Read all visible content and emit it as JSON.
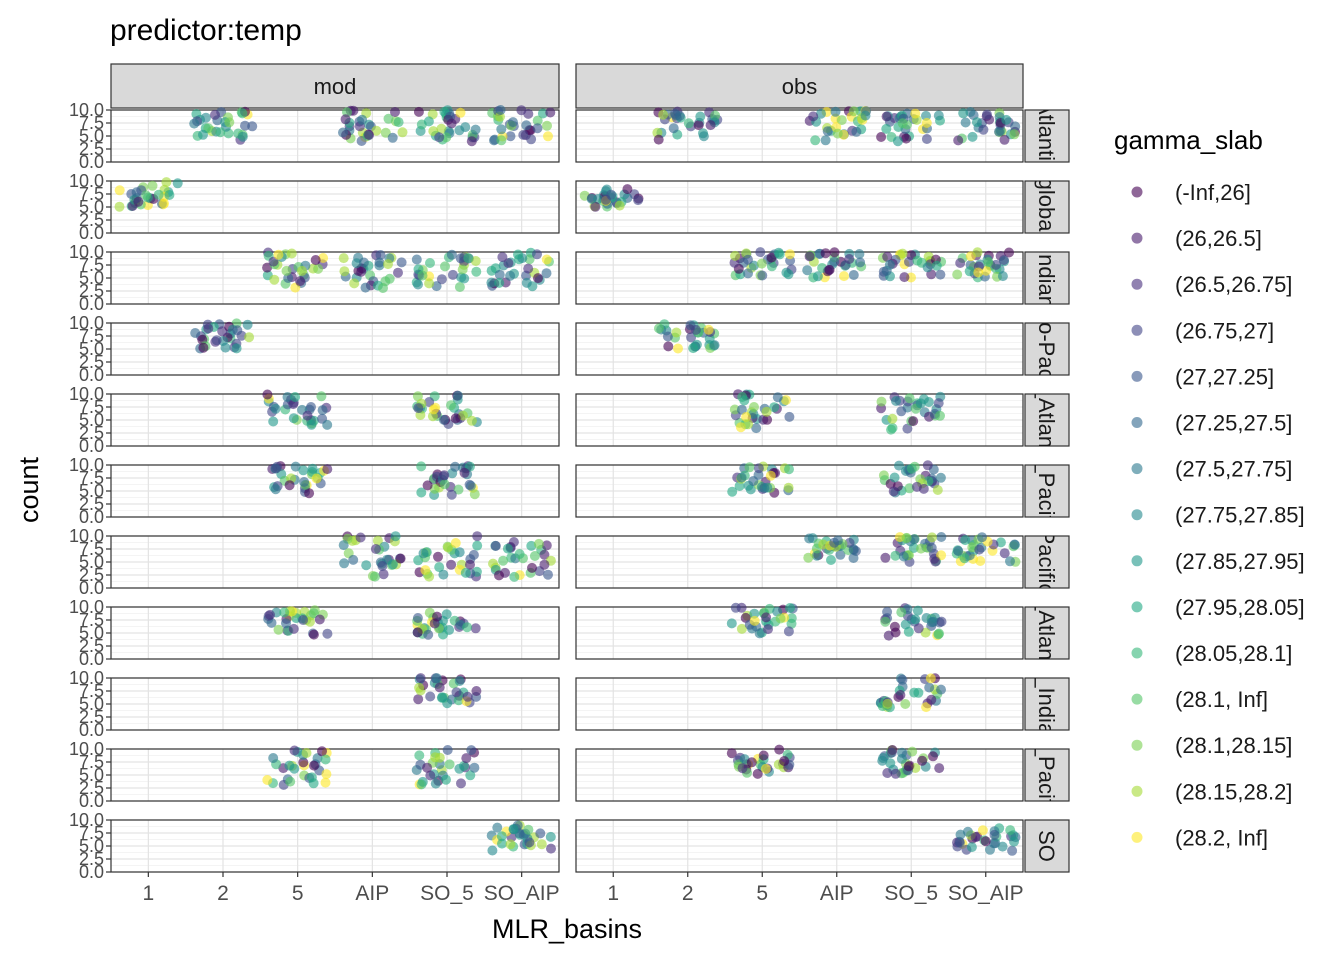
{
  "chart_data": {
    "type": "scatter",
    "title": "predictor:temp",
    "xlabel": "MLR_basins",
    "ylabel": "count",
    "x_categories": [
      "1",
      "2",
      "5",
      "AIP",
      "SO_5",
      "SO_AIP"
    ],
    "ylim": [
      0,
      10
    ],
    "y_ticks": [
      "0.0",
      "2.5",
      "5.0",
      "7.5",
      "10.0"
    ],
    "grid": true,
    "legend_position": "right",
    "column_strips": [
      "mod",
      "obs"
    ],
    "row_strips": [
      "Atlantic",
      "global",
      "Indian",
      "Indo-Pacific",
      "N_Atlantic",
      "N_Pacific",
      "Pacific",
      "S_Atlantic",
      "S_Indian",
      "S_Pacific",
      "SO"
    ],
    "legend": {
      "title": "gamma_slab",
      "entries": [
        {
          "label": "(-Inf,26]",
          "color": "#440154"
        },
        {
          "label": "(26,26.5]",
          "color": "#481A6C"
        },
        {
          "label": "(26.5,26.75]",
          "color": "#472F7D"
        },
        {
          "label": "(26.75,27]",
          "color": "#414487"
        },
        {
          "label": "(27,27.25]",
          "color": "#39568C"
        },
        {
          "label": "(27.25,27.5]",
          "color": "#31688E"
        },
        {
          "label": "(27.5,27.75]",
          "color": "#2A788E"
        },
        {
          "label": "(27.75,27.85]",
          "color": "#23888E"
        },
        {
          "label": "(27.85,27.95]",
          "color": "#1F988B"
        },
        {
          "label": "(27.95,28.05]",
          "color": "#22A884"
        },
        {
          "label": "(28.05,28.1]",
          "color": "#35B779"
        },
        {
          "label": "(28.1, Inf]",
          "color": "#54C568"
        },
        {
          "label": "(28.1,28.15]",
          "color": "#7AD151"
        },
        {
          "label": "(28.15,28.2]",
          "color": "#A5DB36"
        },
        {
          "label": "(28.2, Inf]",
          "color": "#FDE725"
        }
      ]
    },
    "panels": [
      {
        "row": "Atlantic",
        "column": "mod",
        "x_categories": [
          "2",
          "AIP",
          "SO_5",
          "SO_AIP"
        ],
        "y_range": [
          4,
          10
        ]
      },
      {
        "row": "Atlantic",
        "column": "obs",
        "x_categories": [
          "2",
          "AIP",
          "SO_5",
          "SO_AIP"
        ],
        "y_range": [
          4,
          10
        ]
      },
      {
        "row": "global",
        "column": "mod",
        "x_categories": [
          "1"
        ],
        "y_range": [
          5,
          10
        ]
      },
      {
        "row": "global",
        "column": "obs",
        "x_categories": [
          "1"
        ],
        "y_range": [
          5,
          8.5
        ]
      },
      {
        "row": "Indian",
        "column": "mod",
        "x_categories": [
          "5",
          "AIP",
          "SO_5",
          "SO_AIP"
        ],
        "y_range": [
          3,
          10
        ]
      },
      {
        "row": "Indian",
        "column": "obs",
        "x_categories": [
          "5",
          "AIP",
          "SO_5",
          "SO_AIP"
        ],
        "y_range": [
          5,
          10
        ]
      },
      {
        "row": "Indo-Pacific",
        "column": "mod",
        "x_categories": [
          "2"
        ],
        "y_range": [
          5,
          10
        ]
      },
      {
        "row": "Indo-Pacific",
        "column": "obs",
        "x_categories": [
          "2"
        ],
        "y_range": [
          5,
          10
        ]
      },
      {
        "row": "N_Atlantic",
        "column": "mod",
        "x_categories": [
          "5",
          "SO_5"
        ],
        "y_range": [
          4,
          10
        ]
      },
      {
        "row": "N_Atlantic",
        "column": "obs",
        "x_categories": [
          "5",
          "SO_5"
        ],
        "y_range": [
          3,
          10
        ]
      },
      {
        "row": "N_Pacific",
        "column": "mod",
        "x_categories": [
          "5",
          "SO_5"
        ],
        "y_range": [
          4,
          10
        ]
      },
      {
        "row": "N_Pacific",
        "column": "obs",
        "x_categories": [
          "5",
          "SO_5"
        ],
        "y_range": [
          4.5,
          10
        ]
      },
      {
        "row": "Pacific",
        "column": "mod",
        "x_categories": [
          "AIP",
          "SO_5",
          "SO_AIP"
        ],
        "y_range": [
          2,
          10
        ]
      },
      {
        "row": "Pacific",
        "column": "obs",
        "x_categories": [
          "AIP",
          "SO_5",
          "SO_AIP"
        ],
        "y_range": [
          5,
          10
        ]
      },
      {
        "row": "S_Atlantic",
        "column": "mod",
        "x_categories": [
          "5",
          "SO_5"
        ],
        "y_range": [
          4.5,
          9.5
        ]
      },
      {
        "row": "S_Atlantic",
        "column": "obs",
        "x_categories": [
          "5",
          "SO_5"
        ],
        "y_range": [
          4.5,
          10
        ]
      },
      {
        "row": "S_Indian",
        "column": "mod",
        "x_categories": [
          "SO_5"
        ],
        "y_range": [
          5,
          10
        ]
      },
      {
        "row": "S_Indian",
        "column": "obs",
        "x_categories": [
          "SO_5"
        ],
        "y_range": [
          4,
          10
        ]
      },
      {
        "row": "S_Pacific",
        "column": "mod",
        "x_categories": [
          "5",
          "SO_5"
        ],
        "y_range": [
          3,
          10
        ]
      },
      {
        "row": "S_Pacific",
        "column": "obs",
        "x_categories": [
          "5",
          "SO_5"
        ],
        "y_range": [
          5,
          10
        ]
      },
      {
        "row": "SO",
        "column": "mod",
        "x_categories": [
          "SO_AIP"
        ],
        "y_range": [
          4,
          9
        ]
      },
      {
        "row": "SO",
        "column": "obs",
        "x_categories": [
          "SO_AIP"
        ],
        "y_range": [
          4,
          9
        ]
      }
    ]
  }
}
